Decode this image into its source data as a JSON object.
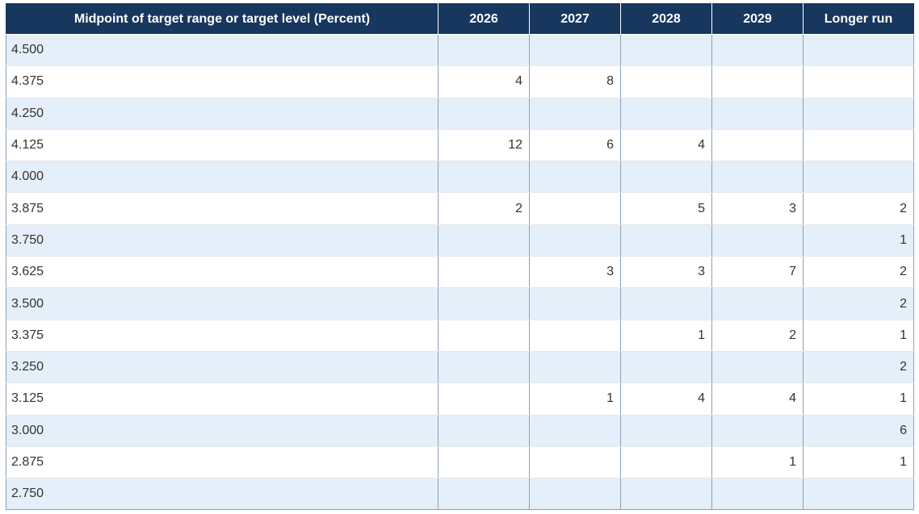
{
  "chart_data": {
    "type": "table",
    "columns": [
      "Midpoint of target range or target level (Percent)",
      "2026",
      "2027",
      "2028",
      "2029",
      "Longer run"
    ],
    "rows": [
      {
        "rate": "4.500",
        "values": [
          "",
          "",
          "",
          "",
          ""
        ]
      },
      {
        "rate": "4.375",
        "values": [
          "4",
          "8",
          "",
          "",
          ""
        ]
      },
      {
        "rate": "4.250",
        "values": [
          "",
          "",
          "",
          "",
          ""
        ]
      },
      {
        "rate": "4.125",
        "values": [
          "12",
          "6",
          "4",
          "",
          ""
        ]
      },
      {
        "rate": "4.000",
        "values": [
          "",
          "",
          "",
          "",
          ""
        ]
      },
      {
        "rate": "3.875",
        "values": [
          "2",
          "",
          "5",
          "3",
          "2"
        ]
      },
      {
        "rate": "3.750",
        "values": [
          "",
          "",
          "",
          "",
          "1"
        ]
      },
      {
        "rate": "3.625",
        "values": [
          "",
          "3",
          "3",
          "7",
          "2"
        ]
      },
      {
        "rate": "3.500",
        "values": [
          "",
          "",
          "",
          "",
          "2"
        ]
      },
      {
        "rate": "3.375",
        "values": [
          "",
          "",
          "1",
          "2",
          "1"
        ]
      },
      {
        "rate": "3.250",
        "values": [
          "",
          "",
          "",
          "",
          "2"
        ]
      },
      {
        "rate": "3.125",
        "values": [
          "",
          "1",
          "4",
          "4",
          "1"
        ]
      },
      {
        "rate": "3.000",
        "values": [
          "",
          "",
          "",
          "",
          "6"
        ]
      },
      {
        "rate": "2.875",
        "values": [
          "",
          "",
          "",
          "1",
          "1"
        ]
      },
      {
        "rate": "2.750",
        "values": [
          "",
          "",
          "",
          "",
          ""
        ]
      }
    ]
  },
  "colors": {
    "header_bg": "#17375e",
    "header_text": "#ffffff",
    "row_alt_bg": "#e4eff9",
    "row_bg": "#ffffff",
    "cell_text": "#333333"
  }
}
